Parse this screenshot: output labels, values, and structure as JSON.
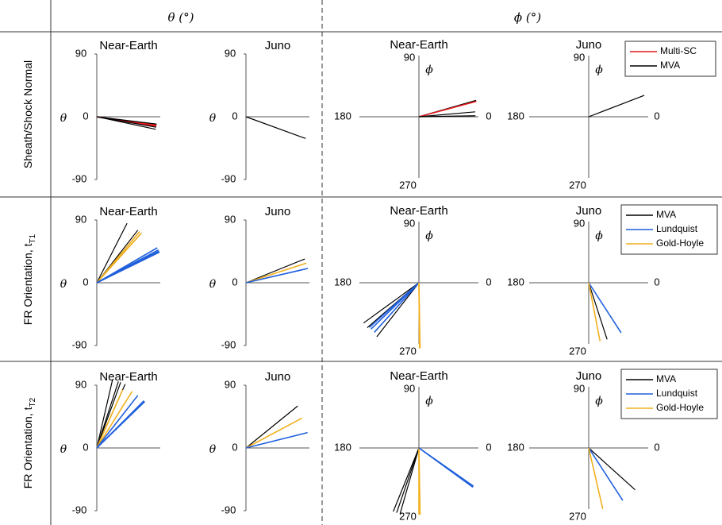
{
  "colors": {
    "black": "#000000",
    "red": "#e41a1c",
    "blue": "#1f5fdc",
    "yellow": "#f2b01e",
    "axis": "#555555",
    "grid_rule": "#333333"
  },
  "header": {
    "theta": "θ (°)",
    "phi": "ϕ (°)"
  },
  "row_labels": [
    "Sheath/Shock Normal",
    "FR Orientation, t",
    "FR Orientation, t"
  ],
  "row_label_subscripts": [
    "",
    "T1",
    "T2"
  ],
  "panel_titles": {
    "near_earth": "Near-Earth",
    "juno": "Juno"
  },
  "axis_text": {
    "theta_symbol": "θ",
    "phi_symbol": "ϕ",
    "theta_ticks": [
      "90",
      "0",
      "-90"
    ],
    "phi_labels": {
      "top": "90",
      "left": "180",
      "right": "0",
      "bottom": "270"
    }
  },
  "legends": [
    [
      {
        "label": "Multi-SC",
        "color": "red"
      },
      {
        "label": "MVA",
        "color": "black"
      }
    ],
    [
      {
        "label": "MVA",
        "color": "black"
      },
      {
        "label": "Lundquist",
        "color": "blue"
      },
      {
        "label": "Gold-Hoyle",
        "color": "yellow"
      }
    ],
    [
      {
        "label": "MVA",
        "color": "black"
      },
      {
        "label": "Lundquist",
        "color": "blue"
      },
      {
        "label": "Gold-Hoyle",
        "color": "yellow"
      }
    ]
  ],
  "chart_data": {
    "type": "line",
    "description_units": "Each line is a direction vector: theta panels use angle in degrees from horizontal (θ), phi panels use azimuth ϕ in degrees (0 right, 90 up, 180 left, 270 down).",
    "rows": [
      {
        "theta_near_earth": [
          {
            "color": "red",
            "angle": -9,
            "length": 0.95
          },
          {
            "color": "red",
            "angle": -8,
            "length": 0.95
          },
          {
            "color": "black",
            "angle": -10,
            "length": 0.95
          },
          {
            "color": "black",
            "angle": -12,
            "length": 0.95
          },
          {
            "color": "black",
            "angle": -7,
            "length": 0.95
          }
        ],
        "theta_juno": [
          {
            "color": "black",
            "angle": -20,
            "length": 1.0
          }
        ],
        "phi_near_earth": [
          {
            "color": "black",
            "angle": 16,
            "length": 1.0
          },
          {
            "color": "red",
            "angle": 15,
            "length": 1.0
          },
          {
            "color": "black",
            "angle": 5,
            "length": 0.95
          },
          {
            "color": "black",
            "angle": 1,
            "length": 0.95
          }
        ],
        "phi_juno": [
          {
            "color": "black",
            "angle": 21,
            "length": 1.0
          }
        ]
      },
      {
        "theta_near_earth": [
          {
            "color": "black",
            "angle": 63,
            "length": 1.05
          },
          {
            "color": "black",
            "angle": 52,
            "length": 1.05
          },
          {
            "color": "black",
            "angle": 50,
            "length": 1.05
          },
          {
            "color": "black",
            "angle": 48,
            "length": 1.05
          },
          {
            "color": "yellow",
            "angle": 50,
            "length": 1.05
          },
          {
            "color": "yellow",
            "angle": 48,
            "length": 1.05
          },
          {
            "color": "blue",
            "angle": 30,
            "length": 1.1
          },
          {
            "color": "blue",
            "angle": 28,
            "length": 1.1
          },
          {
            "color": "blue",
            "angle": 27,
            "length": 1.1
          },
          {
            "color": "blue",
            "angle": 26,
            "length": 1.1
          }
        ],
        "theta_juno": [
          {
            "color": "black",
            "angle": 22,
            "length": 1.0
          },
          {
            "color": "yellow",
            "angle": 18,
            "length": 1.0
          },
          {
            "color": "blue",
            "angle": 13,
            "length": 1.0
          }
        ],
        "phi_near_earth": [
          {
            "color": "black",
            "angle": 216,
            "length": 1.15
          },
          {
            "color": "black",
            "angle": 221,
            "length": 1.15
          },
          {
            "color": "black",
            "angle": 232,
            "length": 1.15
          },
          {
            "color": "blue",
            "angle": 222,
            "length": 1.12
          },
          {
            "color": "blue",
            "angle": 224,
            "length": 1.12
          },
          {
            "color": "blue",
            "angle": 228,
            "length": 1.12
          },
          {
            "color": "yellow",
            "angle": 271,
            "length": 1.1
          },
          {
            "color": "yellow",
            "angle": 270.5,
            "length": 1.1
          }
        ],
        "phi_juno": [
          {
            "color": "black",
            "angle": 288,
            "length": 1.0
          },
          {
            "color": "blue",
            "angle": 303,
            "length": 1.0
          },
          {
            "color": "yellow",
            "angle": 281,
            "length": 1.0
          }
        ]
      },
      {
        "theta_near_earth": [
          {
            "color": "black",
            "angle": 77,
            "length": 1.1
          },
          {
            "color": "black",
            "angle": 72,
            "length": 1.1
          },
          {
            "color": "black",
            "angle": 70,
            "length": 1.1
          },
          {
            "color": "black",
            "angle": 66,
            "length": 1.1
          },
          {
            "color": "yellow",
            "angle": 66,
            "length": 1.0
          },
          {
            "color": "yellow",
            "angle": 58,
            "length": 1.05
          },
          {
            "color": "blue",
            "angle": 52,
            "length": 1.05
          },
          {
            "color": "blue",
            "angle": 45,
            "length": 1.05
          },
          {
            "color": "blue",
            "angle": 44,
            "length": 1.05
          }
        ],
        "theta_juno": [
          {
            "color": "black",
            "angle": 39,
            "length": 1.05
          },
          {
            "color": "yellow",
            "angle": 28,
            "length": 1.0
          },
          {
            "color": "blue",
            "angle": 14,
            "length": 1.0
          }
        ],
        "phi_near_earth": [
          {
            "color": "black",
            "angle": 254,
            "length": 1.15
          },
          {
            "color": "black",
            "angle": 251,
            "length": 1.15
          },
          {
            "color": "black",
            "angle": 248,
            "length": 1.15
          },
          {
            "color": "yellow",
            "angle": 271,
            "length": 1.12
          },
          {
            "color": "yellow",
            "angle": 270,
            "length": 1.12
          },
          {
            "color": "blue",
            "angle": 325,
            "length": 1.12
          },
          {
            "color": "blue",
            "angle": 324,
            "length": 1.12
          }
        ],
        "phi_juno": [
          {
            "color": "black",
            "angle": 318,
            "length": 1.05
          },
          {
            "color": "blue",
            "angle": 303,
            "length": 1.05
          },
          {
            "color": "yellow",
            "angle": 283,
            "length": 1.05
          }
        ]
      }
    ]
  }
}
